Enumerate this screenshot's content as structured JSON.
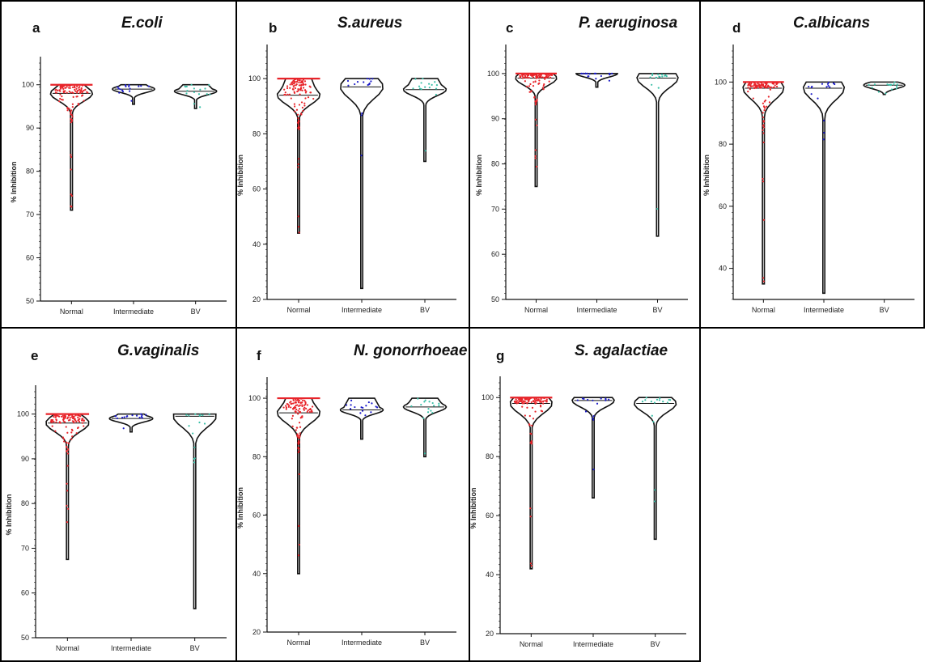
{
  "figure": {
    "categories": [
      "Normal",
      "Intermediate",
      "BV"
    ],
    "ylabel": "% Inhibition",
    "colors": {
      "Normal": "#e8242a",
      "Intermediate": "#1c1cc8",
      "BV": "#3cc0a8",
      "outline": "#111111"
    }
  },
  "chart_data": [
    {
      "type": "violin",
      "panel": "a",
      "title": "E.coli",
      "xlabel": "",
      "ylabel": "% Inhibition",
      "categories": [
        "Normal",
        "Intermediate",
        "BV"
      ],
      "ylim": [
        50,
        105
      ],
      "yticks": [
        50,
        60,
        70,
        80,
        90,
        100
      ],
      "grid": false,
      "series": [
        {
          "name": "Normal",
          "min": 71,
          "median": 98,
          "max": 100
        },
        {
          "name": "Intermediate",
          "min": 95.5,
          "median": 99,
          "max": 100
        },
        {
          "name": "BV",
          "min": 94.5,
          "median": 98.5,
          "max": 100
        }
      ]
    },
    {
      "type": "violin",
      "panel": "b",
      "title": "S.aureus",
      "xlabel": "",
      "ylabel": "% Inhibition",
      "categories": [
        "Normal",
        "Intermediate",
        "BV"
      ],
      "ylim": [
        20,
        110
      ],
      "yticks": [
        20,
        40,
        60,
        80,
        100
      ],
      "grid": false,
      "series": [
        {
          "name": "Normal",
          "min": 44,
          "median": 94,
          "max": 100
        },
        {
          "name": "Intermediate",
          "min": 24,
          "median": 97,
          "max": 100
        },
        {
          "name": "BV",
          "min": 70,
          "median": 96,
          "max": 100
        }
      ]
    },
    {
      "type": "violin",
      "panel": "c",
      "title": "P. aeruginosa",
      "xlabel": "",
      "ylabel": "% Inhibition",
      "categories": [
        "Normal",
        "Intermediate",
        "BV"
      ],
      "ylim": [
        50,
        105
      ],
      "yticks": [
        50,
        60,
        70,
        80,
        90,
        100
      ],
      "grid": false,
      "series": [
        {
          "name": "Normal",
          "min": 75,
          "median": 99,
          "max": 100
        },
        {
          "name": "Intermediate",
          "min": 97,
          "median": 100,
          "max": 100
        },
        {
          "name": "BV",
          "min": 64,
          "median": 99,
          "max": 100
        }
      ]
    },
    {
      "type": "violin",
      "panel": "d",
      "title": "C.albicans",
      "xlabel": "",
      "ylabel": "% Inhibition",
      "categories": [
        "Normal",
        "Intermediate",
        "BV"
      ],
      "ylim": [
        30,
        110
      ],
      "yticks": [
        40,
        60,
        80,
        100
      ],
      "grid": false,
      "series": [
        {
          "name": "Normal",
          "min": 35,
          "median": 98,
          "max": 100
        },
        {
          "name": "Intermediate",
          "min": 32,
          "median": 98,
          "max": 100
        },
        {
          "name": "BV",
          "min": 96,
          "median": 99,
          "max": 100
        }
      ]
    },
    {
      "type": "violin",
      "panel": "e",
      "title": "G.vaginalis",
      "xlabel": "",
      "ylabel": "% Inhibition",
      "categories": [
        "Normal",
        "Intermediate",
        "BV"
      ],
      "ylim": [
        50,
        105
      ],
      "yticks": [
        50,
        60,
        70,
        80,
        90,
        100
      ],
      "grid": false,
      "series": [
        {
          "name": "Normal",
          "min": 67.5,
          "median": 98,
          "max": 100
        },
        {
          "name": "Intermediate",
          "min": 96,
          "median": 99,
          "max": 100
        },
        {
          "name": "BV",
          "min": 56.5,
          "median": 99.5,
          "max": 100
        }
      ]
    },
    {
      "type": "violin",
      "panel": "f",
      "title": "N. gonorrhoeae",
      "xlabel": "",
      "ylabel": "% Inhibition",
      "categories": [
        "Normal",
        "Intermediate",
        "BV"
      ],
      "ylim": [
        20,
        105
      ],
      "yticks": [
        20,
        40,
        60,
        80,
        100
      ],
      "grid": false,
      "series": [
        {
          "name": "Normal",
          "min": 40,
          "median": 95,
          "max": 100
        },
        {
          "name": "Intermediate",
          "min": 86,
          "median": 96,
          "max": 100
        },
        {
          "name": "BV",
          "min": 80,
          "median": 97,
          "max": 100
        }
      ]
    },
    {
      "type": "violin",
      "panel": "g",
      "title": "S. agalactiae",
      "xlabel": "",
      "ylabel": "% Inhibition",
      "categories": [
        "Normal",
        "Intermediate",
        "BV"
      ],
      "ylim": [
        20,
        105
      ],
      "yticks": [
        20,
        40,
        60,
        80,
        100
      ],
      "grid": false,
      "series": [
        {
          "name": "Normal",
          "min": 42,
          "median": 98,
          "max": 100
        },
        {
          "name": "Intermediate",
          "min": 66,
          "median": 99,
          "max": 100
        },
        {
          "name": "BV",
          "min": 52,
          "median": 98,
          "max": 100
        }
      ]
    }
  ]
}
